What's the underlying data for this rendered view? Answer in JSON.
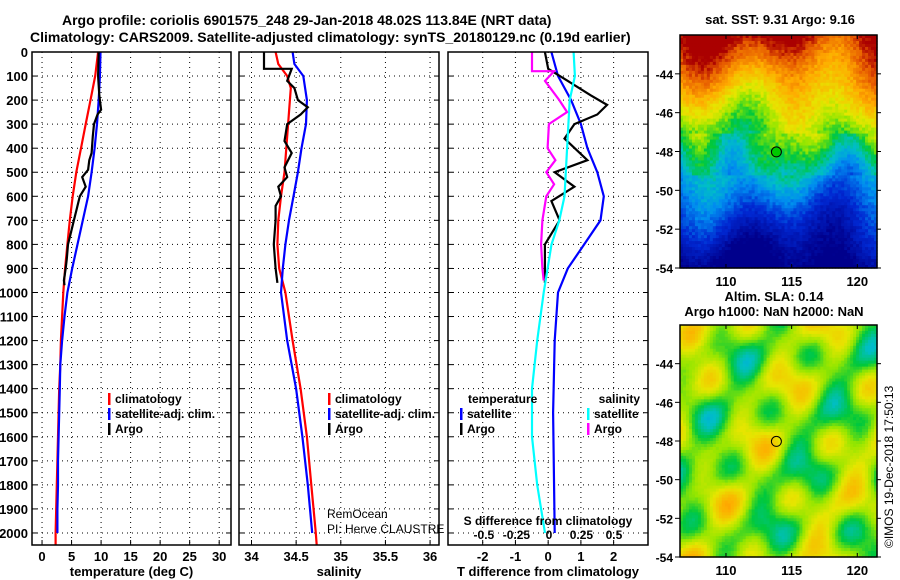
{
  "header": {
    "line1": "Argo profile: coriolis 6901575_248 29-Jan-2018 48.02S 113.84E (NRT data)",
    "line2": "Climatology: CARS2009. Satellite-adjusted climatology: synTS_20180129.nc (0.19d earlier)"
  },
  "colors": {
    "climatology": "#ff0000",
    "satellite": "#0000ff",
    "argo": "#000000",
    "sal_satellite": "#00ffff",
    "sal_argo": "#ff00ff"
  },
  "chart_data": [
    {
      "id": "temperature",
      "type": "line",
      "xlabel": "temperature (deg C)",
      "ylabel": "",
      "xlim": [
        -1.7,
        32
      ],
      "ylim": [
        2050,
        0
      ],
      "xticks": [
        0,
        5,
        10,
        15,
        20,
        25,
        30
      ],
      "yticks": [
        0,
        100,
        200,
        300,
        400,
        500,
        600,
        700,
        800,
        900,
        1000,
        1100,
        1200,
        1300,
        1400,
        1500,
        1600,
        1700,
        1800,
        1900,
        2000
      ],
      "grid": true,
      "legend": {
        "placement": "lower-right",
        "entries": [
          "climatology",
          "satellite-adj. clim.",
          "Argo"
        ]
      },
      "series": [
        {
          "name": "climatology",
          "color": "#ff0000",
          "points": [
            [
              9.5,
              0
            ],
            [
              9.0,
              100
            ],
            [
              8.2,
              200
            ],
            [
              7.4,
              300
            ],
            [
              6.6,
              400
            ],
            [
              5.8,
              500
            ],
            [
              5.2,
              600
            ],
            [
              4.7,
              700
            ],
            [
              4.3,
              800
            ],
            [
              3.9,
              900
            ],
            [
              3.6,
              1000
            ],
            [
              3.4,
              1100
            ],
            [
              3.2,
              1200
            ],
            [
              3.1,
              1300
            ],
            [
              2.9,
              1400
            ],
            [
              2.8,
              1500
            ],
            [
              2.7,
              1600
            ],
            [
              2.6,
              1700
            ],
            [
              2.5,
              1800
            ],
            [
              2.4,
              1900
            ],
            [
              2.3,
              2000
            ],
            [
              2.3,
              2050
            ]
          ]
        },
        {
          "name": "satellite-adj. clim.",
          "color": "#0000ff",
          "points": [
            [
              9.9,
              0
            ],
            [
              9.8,
              100
            ],
            [
              9.6,
              200
            ],
            [
              9.3,
              300
            ],
            [
              8.9,
              400
            ],
            [
              8.4,
              500
            ],
            [
              7.8,
              600
            ],
            [
              6.9,
              700
            ],
            [
              6.0,
              800
            ],
            [
              5.1,
              900
            ],
            [
              4.3,
              1000
            ],
            [
              3.8,
              1100
            ],
            [
              3.4,
              1200
            ],
            [
              3.1,
              1300
            ],
            [
              3.0,
              1400
            ],
            [
              2.9,
              1500
            ],
            [
              2.8,
              1600
            ],
            [
              2.7,
              1700
            ],
            [
              2.7,
              1800
            ],
            [
              2.6,
              1900
            ],
            [
              2.6,
              2000
            ]
          ]
        },
        {
          "name": "Argo",
          "color": "#000000",
          "points": [
            [
              9.6,
              0
            ],
            [
              9.5,
              100
            ],
            [
              9.7,
              180
            ],
            [
              10.0,
              240
            ],
            [
              9.4,
              260
            ],
            [
              8.8,
              300
            ],
            [
              8.6,
              350
            ],
            [
              8.4,
              420
            ],
            [
              8.0,
              450
            ],
            [
              7.8,
              490
            ],
            [
              6.8,
              520
            ],
            [
              7.4,
              560
            ],
            [
              6.4,
              600
            ],
            [
              5.9,
              650
            ],
            [
              5.4,
              700
            ],
            [
              4.8,
              760
            ],
            [
              4.4,
              800
            ],
            [
              4.2,
              860
            ],
            [
              4.0,
              900
            ],
            [
              3.7,
              950
            ],
            [
              3.8,
              970
            ]
          ]
        }
      ]
    },
    {
      "id": "salinity",
      "type": "line",
      "xlabel": "salinity",
      "xlim": [
        33.86,
        36.1
      ],
      "ylim": [
        2050,
        0
      ],
      "xticks": [
        34,
        34.5,
        35,
        35.5,
        36
      ],
      "grid": true,
      "legend": {
        "placement": "lower-right",
        "entries": [
          "climatology",
          "satellite-adj. clim.",
          "Argo"
        ]
      },
      "annotation": [
        "RemOcean",
        "PI: Herve CLAUSTRE"
      ],
      "series": [
        {
          "name": "climatology",
          "color": "#ff0000",
          "points": [
            [
              34.27,
              0
            ],
            [
              34.3,
              50
            ],
            [
              34.4,
              100
            ],
            [
              34.44,
              150
            ],
            [
              34.42,
              250
            ],
            [
              34.39,
              400
            ],
            [
              34.37,
              500
            ],
            [
              34.33,
              600
            ],
            [
              34.3,
              700
            ],
            [
              34.29,
              800
            ],
            [
              34.31,
              900
            ],
            [
              34.38,
              1000
            ],
            [
              34.46,
              1200
            ],
            [
              34.55,
              1400
            ],
            [
              34.62,
              1600
            ],
            [
              34.67,
              1800
            ],
            [
              34.72,
              2000
            ],
            [
              34.73,
              2050
            ]
          ]
        },
        {
          "name": "satellite-adj. clim.",
          "color": "#0000ff",
          "points": [
            [
              34.46,
              0
            ],
            [
              34.48,
              50
            ],
            [
              34.58,
              100
            ],
            [
              34.62,
              200
            ],
            [
              34.61,
              300
            ],
            [
              34.56,
              400
            ],
            [
              34.52,
              500
            ],
            [
              34.47,
              600
            ],
            [
              34.42,
              700
            ],
            [
              34.38,
              800
            ],
            [
              34.35,
              900
            ],
            [
              34.33,
              1000
            ],
            [
              34.4,
              1200
            ],
            [
              34.5,
              1400
            ],
            [
              34.57,
              1600
            ],
            [
              34.63,
              1800
            ],
            [
              34.68,
              2000
            ]
          ]
        },
        {
          "name": "Argo",
          "color": "#000000",
          "points": [
            [
              34.14,
              0
            ],
            [
              34.14,
              70
            ],
            [
              34.45,
              70
            ],
            [
              34.4,
              120
            ],
            [
              34.48,
              150
            ],
            [
              34.52,
              200
            ],
            [
              34.63,
              230
            ],
            [
              34.55,
              260
            ],
            [
              34.4,
              300
            ],
            [
              34.37,
              370
            ],
            [
              34.45,
              420
            ],
            [
              34.37,
              480
            ],
            [
              34.4,
              520
            ],
            [
              34.3,
              560
            ],
            [
              34.33,
              600
            ],
            [
              34.27,
              640
            ],
            [
              34.27,
              700
            ],
            [
              34.25,
              800
            ],
            [
              34.27,
              900
            ],
            [
              34.29,
              960
            ]
          ]
        }
      ]
    },
    {
      "id": "difference",
      "type": "line",
      "xlabel": "T difference from climatology",
      "xlim": [
        -3.06,
        3.05
      ],
      "xticks": [
        -2,
        -1,
        0,
        1,
        2
      ],
      "secondary_xlabel": "S difference from climatology",
      "secondary_xticks": [
        "-0.5",
        "-0.25",
        "0",
        "0.25",
        "0.5"
      ],
      "secondary_xlim": [
        -0.776,
        0.762
      ],
      "ylim": [
        2050,
        0
      ],
      "grid": true,
      "legend": {
        "placement": "lower-center",
        "temperature_title": "temperature",
        "salinity_title": "salinity",
        "temperature_entries": [
          "satellite",
          "Argo"
        ],
        "salinity_entries": [
          "satellite",
          "Argo"
        ]
      },
      "series": [
        {
          "name": "temperature satellite",
          "color": "#0000ff",
          "axis": "T",
          "points": [
            [
              0.1,
              0
            ],
            [
              0.3,
              100
            ],
            [
              0.7,
              200
            ],
            [
              1.0,
              300
            ],
            [
              1.2,
              400
            ],
            [
              1.5,
              500
            ],
            [
              1.7,
              600
            ],
            [
              1.6,
              700
            ],
            [
              1.1,
              800
            ],
            [
              0.6,
              900
            ],
            [
              0.3,
              1000
            ],
            [
              0.2,
              1200
            ],
            [
              0.15,
              1500
            ],
            [
              0.2,
              2000
            ]
          ]
        },
        {
          "name": "temperature Argo",
          "color": "#000000",
          "axis": "T",
          "points": [
            [
              -0.1,
              0
            ],
            [
              0.0,
              70
            ],
            [
              0.6,
              120
            ],
            [
              1.3,
              180
            ],
            [
              1.8,
              220
            ],
            [
              1.5,
              260
            ],
            [
              0.8,
              300
            ],
            [
              0.5,
              360
            ],
            [
              1.2,
              450
            ],
            [
              0.2,
              500
            ],
            [
              0.8,
              560
            ],
            [
              0.1,
              620
            ],
            [
              0.35,
              700
            ],
            [
              -0.1,
              800
            ],
            [
              -0.1,
              900
            ],
            [
              -0.1,
              960
            ]
          ]
        },
        {
          "name": "salinity satellite",
          "color": "#00ffff",
          "axis": "S",
          "points": [
            [
              0.19,
              0
            ],
            [
              0.2,
              100
            ],
            [
              0.16,
              200
            ],
            [
              0.15,
              300
            ],
            [
              0.14,
              400
            ],
            [
              0.13,
              500
            ],
            [
              0.12,
              600
            ],
            [
              0.08,
              700
            ],
            [
              0.02,
              800
            ],
            [
              -0.04,
              1000
            ],
            [
              -0.09,
              1200
            ],
            [
              -0.13,
              1400
            ],
            [
              -0.13,
              1600
            ],
            [
              -0.09,
              1800
            ],
            [
              -0.03,
              2000
            ]
          ]
        },
        {
          "name": "salinity Argo",
          "color": "#ff00ff",
          "axis": "S",
          "points": [
            [
              -0.13,
              0
            ],
            [
              -0.13,
              80
            ],
            [
              0.04,
              80
            ],
            [
              -0.03,
              120
            ],
            [
              0.08,
              200
            ],
            [
              0.14,
              250
            ],
            [
              0.0,
              300
            ],
            [
              -0.01,
              400
            ],
            [
              0.05,
              450
            ],
            [
              -0.02,
              500
            ],
            [
              0.04,
              550
            ],
            [
              -0.02,
              600
            ],
            [
              -0.05,
              700
            ],
            [
              -0.06,
              800
            ],
            [
              -0.05,
              900
            ],
            [
              -0.04,
              950
            ]
          ]
        }
      ]
    },
    {
      "id": "sst-map",
      "type": "heatmap",
      "title": "sat. SST: 9.31 Argo: 9.16",
      "xlim": [
        106.5,
        121.5
      ],
      "ylim": [
        -54,
        -42
      ],
      "xticks": [
        110,
        115,
        120
      ],
      "yticks": [
        -44,
        -46,
        -48,
        -50,
        -52,
        -54
      ],
      "marker": {
        "lon": 113.84,
        "lat": -48.02
      }
    },
    {
      "id": "sla-map",
      "type": "heatmap",
      "title": "Altim. SLA: 0.14",
      "subtitle": "Argo h1000: NaN h2000: NaN",
      "xlim": [
        106.5,
        121.5
      ],
      "ylim": [
        -54,
        -42
      ],
      "xticks": [
        110,
        115,
        120
      ],
      "yticks": [
        -44,
        -46,
        -48,
        -50,
        -52,
        -54
      ],
      "marker": {
        "lon": 113.84,
        "lat": -48.02
      }
    }
  ],
  "credit": "©IMOS 19-Dec-2018 17:50:13"
}
